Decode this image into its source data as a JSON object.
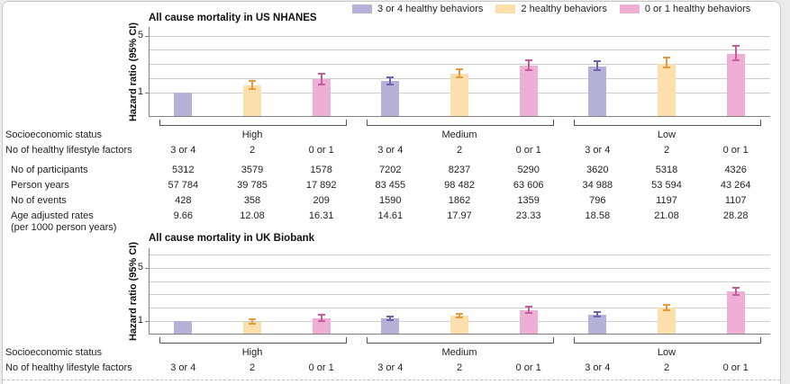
{
  "legend": [
    {
      "label": "3 or 4 healthy behaviors",
      "fill": "#b6b1d8",
      "ci_color": "#6f63ae"
    },
    {
      "label": "2 healthy behaviors",
      "fill": "#fbe0ae",
      "ci_color": "#e59c3e"
    },
    {
      "label": "0 or 1 healthy behaviors",
      "fill": "#efaed3",
      "ci_color": "#c75ba2"
    }
  ],
  "chart_data": [
    {
      "type": "bar",
      "title": "All cause mortality in US NHANES",
      "ylabel": "Hazard ratio (95% CI)",
      "ylim": [
        -0.7,
        5.6
      ],
      "gridlines": [
        1,
        2,
        3,
        4,
        5
      ],
      "yticks": [
        1,
        5
      ],
      "groups": [
        "High",
        "Medium",
        "Low"
      ],
      "series_labels": [
        "3 or 4",
        "2",
        "0 or 1"
      ],
      "bars": [
        {
          "group": "High",
          "factors": "3 or 4",
          "hr": 1.0
        },
        {
          "group": "High",
          "factors": "2",
          "hr": 1.52,
          "lo": 1.25,
          "hi": 1.85
        },
        {
          "group": "High",
          "factors": "0 or 1",
          "hr": 1.92,
          "lo": 1.6,
          "hi": 2.35
        },
        {
          "group": "Medium",
          "factors": "3 or 4",
          "hr": 1.8,
          "lo": 1.6,
          "hi": 2.05
        },
        {
          "group": "Medium",
          "factors": "2",
          "hr": 2.35,
          "lo": 2.1,
          "hi": 2.65
        },
        {
          "group": "Medium",
          "factors": "0 or 1",
          "hr": 2.9,
          "lo": 2.6,
          "hi": 3.25
        },
        {
          "group": "Low",
          "factors": "3 or 4",
          "hr": 2.85,
          "lo": 2.55,
          "hi": 3.2
        },
        {
          "group": "Low",
          "factors": "2",
          "hr": 3.05,
          "lo": 2.75,
          "hi": 3.45
        },
        {
          "group": "Low",
          "factors": "0 or 1",
          "hr": 3.7,
          "lo": 3.3,
          "hi": 4.25
        }
      ]
    },
    {
      "type": "bar",
      "title": "All cause mortality in UK Biobank",
      "ylabel": "Hazard ratio (95% CI)",
      "ylim": [
        0,
        6.45
      ],
      "gridlines": [
        1,
        2,
        3,
        4,
        5,
        6
      ],
      "yticks": [
        1,
        5
      ],
      "groups": [
        "High",
        "Medium",
        "Low"
      ],
      "series_labels": [
        "3 or 4",
        "2",
        "0 or 1"
      ],
      "bars": [
        {
          "group": "High",
          "factors": "3 or 4",
          "hr": 1.0
        },
        {
          "group": "High",
          "factors": "2",
          "hr": 0.95,
          "lo": 0.78,
          "hi": 1.15
        },
        {
          "group": "High",
          "factors": "0 or 1",
          "hr": 1.22,
          "lo": 1.02,
          "hi": 1.48
        },
        {
          "group": "Medium",
          "factors": "3 or 4",
          "hr": 1.18,
          "lo": 1.05,
          "hi": 1.32
        },
        {
          "group": "Medium",
          "factors": "2",
          "hr": 1.4,
          "lo": 1.25,
          "hi": 1.58
        },
        {
          "group": "Medium",
          "factors": "0 or 1",
          "hr": 1.85,
          "lo": 1.62,
          "hi": 2.1
        },
        {
          "group": "Low",
          "factors": "3 or 4",
          "hr": 1.5,
          "lo": 1.35,
          "hi": 1.68
        },
        {
          "group": "Low",
          "factors": "2",
          "hr": 2.0,
          "lo": 1.8,
          "hi": 2.25
        },
        {
          "group": "Low",
          "factors": "0 or 1",
          "hr": 3.2,
          "lo": 2.95,
          "hi": 3.5
        }
      ]
    }
  ],
  "tables": [
    {
      "rows": [
        {
          "label": "Socioeconomic status",
          "groups": [
            "High",
            "Medium",
            "Low"
          ]
        },
        {
          "label": "No of healthy lifestyle factors",
          "values": [
            "3 or 4",
            "2",
            "0 or 1",
            "3 or 4",
            "2",
            "0 or 1",
            "3 or 4",
            "2",
            "0 or 1"
          ]
        },
        {
          "label": "No of participants",
          "indent": true,
          "values": [
            "5312",
            "3579",
            "1578",
            "7202",
            "8237",
            "5290",
            "3620",
            "5318",
            "4326"
          ]
        },
        {
          "label": "Person years",
          "indent": true,
          "values": [
            "57 784",
            "39 785",
            "17 892",
            "83 455",
            "98 482",
            "63 606",
            "34 988",
            "53 594",
            "43 264"
          ]
        },
        {
          "label": "No of events",
          "indent": true,
          "values": [
            "428",
            "358",
            "209",
            "1590",
            "1862",
            "1359",
            "796",
            "1197",
            "1107"
          ]
        },
        {
          "label": "Age adjusted rates",
          "label2": "(per 1000 person years)",
          "indent": true,
          "values": [
            "9.66",
            "12.08",
            "16.31",
            "14.61",
            "17.97",
            "23.33",
            "18.58",
            "21.08",
            "28.28"
          ]
        }
      ]
    },
    {
      "rows": [
        {
          "label": "Socioeconomic status",
          "groups": [
            "High",
            "Medium",
            "Low"
          ]
        },
        {
          "label": "No of healthy lifestyle factors",
          "values": [
            "3 or 4",
            "2",
            "0 or 1",
            "3 or 4",
            "2",
            "0 or 1",
            "3 or 4",
            "2",
            "0 or 1"
          ]
        }
      ]
    }
  ]
}
